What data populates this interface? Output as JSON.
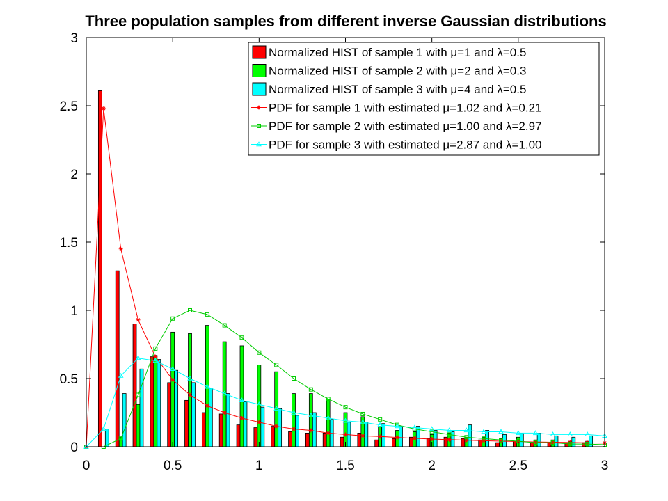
{
  "chart_data": {
    "type": "bar",
    "title": "Three population samples from different inverse Gaussian distributions",
    "xlabel": "",
    "ylabel": "",
    "xlim": [
      0,
      3
    ],
    "ylim": [
      0,
      3
    ],
    "xticks": [
      0,
      0.5,
      1,
      1.5,
      2,
      2.5,
      3
    ],
    "xtick_labels": [
      "0",
      "0.5",
      "1",
      "1.5",
      "2",
      "2.5",
      "3"
    ],
    "yticks": [
      0,
      0.5,
      1,
      1.5,
      2,
      2.5,
      3
    ],
    "ytick_labels": [
      "0",
      "0.5",
      "1",
      "1.5",
      "2",
      "2.5",
      "3"
    ],
    "grid": false,
    "legend_position": "top-right",
    "x": [
      0.1,
      0.2,
      0.3,
      0.4,
      0.5,
      0.6,
      0.7,
      0.8,
      0.9,
      1.0,
      1.1,
      1.2,
      1.3,
      1.4,
      1.5,
      1.6,
      1.7,
      1.8,
      1.9,
      2.0,
      2.1,
      2.2,
      2.3,
      2.4,
      2.5,
      2.6,
      2.7,
      2.8,
      2.9
    ],
    "series": [
      {
        "kind": "hist",
        "name": "Normalized HIST of sample 1 with μ=1 and λ=0.5",
        "color": "#ff0000",
        "values": [
          2.61,
          1.29,
          0.9,
          0.66,
          0.47,
          0.34,
          0.25,
          0.24,
          0.16,
          0.14,
          0.15,
          0.11,
          0.1,
          0.1,
          0.07,
          0.1,
          0.05,
          0.06,
          0.07,
          0.06,
          0.07,
          0.06,
          0.05,
          0.03,
          0.04,
          0.03,
          0.03,
          0.03,
          0.03
        ]
      },
      {
        "kind": "hist",
        "name": "Normalized HIST of sample 2 with μ=2 and λ=0.3",
        "color": "#00ff00",
        "values": [
          0.0,
          0.07,
          0.31,
          0.67,
          0.84,
          0.83,
          0.89,
          0.77,
          0.74,
          0.6,
          0.55,
          0.39,
          0.39,
          0.35,
          0.25,
          0.22,
          0.15,
          0.12,
          0.11,
          0.09,
          0.1,
          0.07,
          0.07,
          0.06,
          0.07,
          0.05,
          0.05,
          0.04,
          0.04
        ]
      },
      {
        "kind": "hist",
        "name": "Normalized HIST of sample 3 with μ=4 and λ=0.5",
        "color": "#00ffff",
        "values": [
          0.13,
          0.39,
          0.57,
          0.64,
          0.56,
          0.47,
          0.43,
          0.39,
          0.33,
          0.29,
          0.28,
          0.23,
          0.25,
          0.2,
          0.18,
          0.18,
          0.17,
          0.15,
          0.15,
          0.12,
          0.11,
          0.16,
          0.12,
          0.09,
          0.1,
          0.1,
          0.08,
          0.07,
          0.08
        ]
      },
      {
        "kind": "pdf",
        "name": "PDF for sample 1 with estimated μ=1.02 and λ=0.21",
        "color": "#ff0000",
        "marker": "star",
        "x": [
          0,
          0.1,
          0.2,
          0.3,
          0.4,
          0.5,
          0.6,
          0.7,
          0.8,
          0.9,
          1.0,
          1.1,
          1.2,
          1.3,
          1.4,
          1.5,
          1.6,
          1.7,
          1.8,
          1.9,
          2.0,
          2.1,
          2.2,
          2.3,
          2.4,
          2.5,
          2.6,
          2.7,
          2.8,
          2.9,
          3.0
        ],
        "values": [
          0.0,
          2.48,
          1.45,
          0.93,
          0.66,
          0.49,
          0.38,
          0.3,
          0.25,
          0.21,
          0.18,
          0.15,
          0.13,
          0.12,
          0.1,
          0.09,
          0.08,
          0.075,
          0.068,
          0.062,
          0.056,
          0.052,
          0.048,
          0.044,
          0.041,
          0.038,
          0.035,
          0.033,
          0.031,
          0.029,
          0.027
        ]
      },
      {
        "kind": "pdf",
        "name": "PDF for sample 2 with estimated μ=1.00 and λ=2.97",
        "color": "#00cc00",
        "marker": "square",
        "x": [
          0,
          0.1,
          0.2,
          0.3,
          0.4,
          0.5,
          0.6,
          0.7,
          0.8,
          0.9,
          1.0,
          1.1,
          1.2,
          1.3,
          1.4,
          1.5,
          1.6,
          1.7,
          1.8,
          1.9,
          2.0,
          2.1,
          2.2,
          2.3,
          2.4,
          2.5,
          2.6,
          2.7,
          2.8,
          2.9,
          3.0
        ],
        "values": [
          0.0,
          0.0,
          0.06,
          0.38,
          0.72,
          0.94,
          1.0,
          0.97,
          0.89,
          0.8,
          0.69,
          0.6,
          0.5,
          0.42,
          0.35,
          0.29,
          0.24,
          0.2,
          0.16,
          0.13,
          0.11,
          0.09,
          0.07,
          0.06,
          0.05,
          0.04,
          0.03,
          0.03,
          0.02,
          0.02,
          0.015
        ]
      },
      {
        "kind": "pdf",
        "name": "PDF for sample 3 with estimated μ=2.87 and λ=1.00",
        "color": "#00ffff",
        "marker": "triangle",
        "x": [
          0,
          0.1,
          0.2,
          0.3,
          0.4,
          0.5,
          0.6,
          0.7,
          0.8,
          0.9,
          1.0,
          1.1,
          1.2,
          1.3,
          1.4,
          1.5,
          1.6,
          1.7,
          1.8,
          1.9,
          2.0,
          2.1,
          2.2,
          2.3,
          2.4,
          2.5,
          2.6,
          2.7,
          2.8,
          2.9,
          3.0
        ],
        "values": [
          0.0,
          0.13,
          0.52,
          0.65,
          0.63,
          0.57,
          0.5,
          0.44,
          0.39,
          0.34,
          0.31,
          0.28,
          0.25,
          0.23,
          0.21,
          0.19,
          0.18,
          0.16,
          0.15,
          0.14,
          0.13,
          0.12,
          0.12,
          0.11,
          0.11,
          0.1,
          0.1,
          0.09,
          0.09,
          0.09,
          0.08
        ]
      }
    ]
  }
}
